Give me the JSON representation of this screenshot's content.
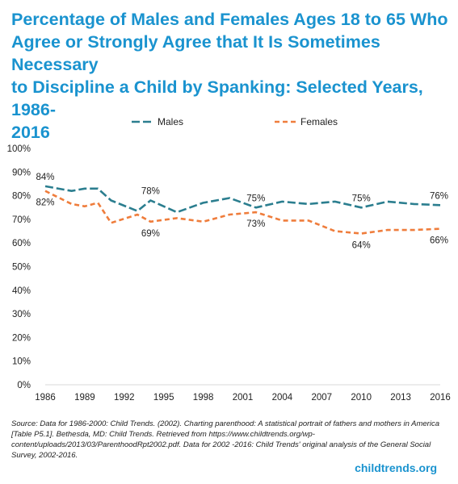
{
  "title_lines": [
    "Percentage of Males and Females Ages 18 to 65 Who",
    "Agree or Strongly Agree that It Is Sometimes Necessary",
    "to Discipline a Child by Spanking: Selected Years, 1986-",
    "2016"
  ],
  "source": "Source: Data for 1986-2000: Child Trends. (2002). Charting parenthood: A statistical portrait of fathers and mothers in America [Table P5.1]. Bethesda, MD: Child Trends. Retrieved from https://www.childtrends.org/wp-content/uploads/2013/03/ParenthoodRpt2002.pdf. Data for 2002 -2016: Child Trends' original analysis of the General Social Survey, 2002-2016.",
  "brand": "childtrends.org",
  "colors": {
    "males": "#2b7e8f",
    "females": "#ef7d3c",
    "title": "#1a93cf",
    "grid": "#d9d9d9"
  },
  "chart_data": {
    "type": "line",
    "title": "Percentage of Males and Females Ages 18 to 65 Who Agree or Strongly Agree that It Is Sometimes Necessary to Discipline a Child by Spanking: Selected Years, 1986-2016",
    "xlabel": "",
    "ylabel": "",
    "ylim": [
      0,
      100
    ],
    "y_ticks": [
      "0%",
      "10%",
      "20%",
      "30%",
      "40%",
      "50%",
      "60%",
      "70%",
      "80%",
      "90%",
      "100%"
    ],
    "x_ticks": [
      "1986",
      "1989",
      "1992",
      "1995",
      "1998",
      "2001",
      "2004",
      "2007",
      "2010",
      "2013",
      "2016"
    ],
    "legend_position": "top",
    "grid": false,
    "series": [
      {
        "name": "Males",
        "style": "long-dash",
        "x": [
          1986,
          1988,
          1989,
          1990,
          1991,
          1993,
          1994,
          1996,
          1998,
          2000,
          2002,
          2004,
          2006,
          2008,
          2010,
          2012,
          2014,
          2016
        ],
        "y": [
          84,
          82,
          83,
          83,
          78,
          73.5,
          78,
          73,
          77,
          79,
          75,
          77.5,
          76.5,
          77.5,
          75,
          77.5,
          76.5,
          76
        ]
      },
      {
        "name": "Females",
        "style": "short-dash",
        "x": [
          1986,
          1988,
          1989,
          1990,
          1991,
          1993,
          1994,
          1996,
          1998,
          2000,
          2002,
          2004,
          2006,
          2008,
          2010,
          2012,
          2014,
          2016
        ],
        "y": [
          82,
          76.5,
          75.5,
          77,
          68.5,
          72,
          69,
          70.5,
          69,
          72,
          73,
          69.5,
          69.5,
          65,
          64,
          65.5,
          65.5,
          66
        ]
      }
    ],
    "annotations": [
      {
        "series": "Males",
        "x": 1986,
        "text": "84%",
        "pos": "above"
      },
      {
        "series": "Males",
        "x": 1994,
        "text": "78%",
        "pos": "above"
      },
      {
        "series": "Males",
        "x": 2002,
        "text": "75%",
        "pos": "above"
      },
      {
        "series": "Males",
        "x": 2010,
        "text": "75%",
        "pos": "above"
      },
      {
        "series": "Males",
        "x": 2016,
        "text": "76%",
        "pos": "above"
      },
      {
        "series": "Females",
        "x": 1986,
        "text": "82%",
        "pos": "below"
      },
      {
        "series": "Females",
        "x": 1994,
        "text": "69%",
        "pos": "below"
      },
      {
        "series": "Females",
        "x": 2002,
        "text": "73%",
        "pos": "below"
      },
      {
        "series": "Females",
        "x": 2010,
        "text": "64%",
        "pos": "below"
      },
      {
        "series": "Females",
        "x": 2016,
        "text": "66%",
        "pos": "below"
      }
    ]
  }
}
